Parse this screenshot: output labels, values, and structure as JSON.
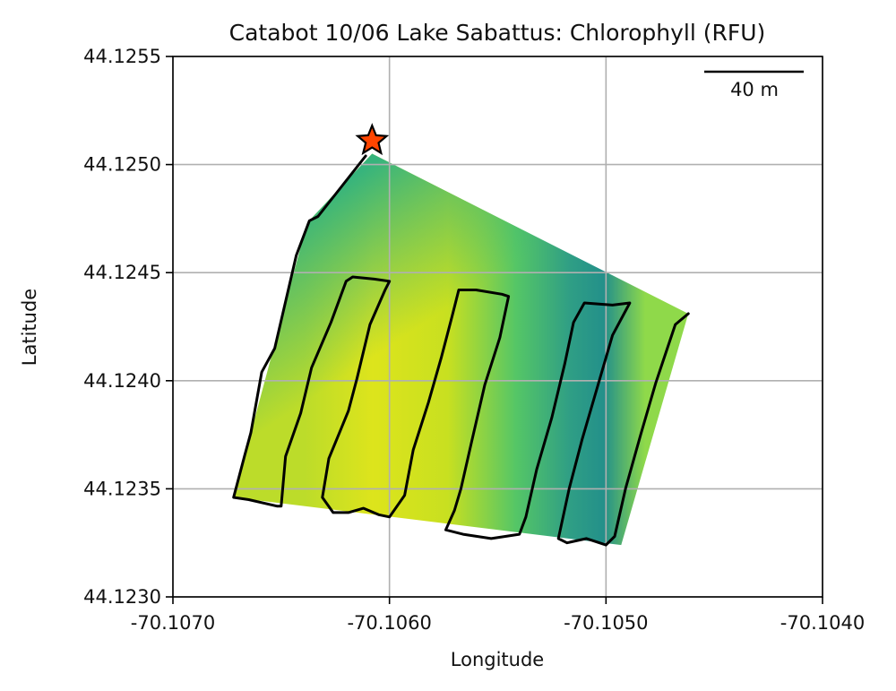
{
  "chart_data": {
    "type": "scatter",
    "title": "Catabot 10/06 Lake Sabattus: Chlorophyll (RFU)",
    "xlabel": "Longitude",
    "ylabel": "Latitude",
    "xlim": [
      -70.107,
      -70.104
    ],
    "ylim": [
      44.123,
      44.1255
    ],
    "x_ticks": [
      "-70.1070",
      "-70.1060",
      "-70.1050",
      "-70.1040"
    ],
    "x_tick_values": [
      -70.107,
      -70.106,
      -70.105,
      -70.104
    ],
    "y_ticks": [
      "44.1230",
      "44.1235",
      "44.1240",
      "44.1245",
      "44.1250",
      "44.1255"
    ],
    "y_tick_values": [
      44.123,
      44.1235,
      44.124,
      44.1245,
      44.125,
      44.1255
    ],
    "grid": true,
    "scale_bar_label": "40 m",
    "start_marker": {
      "lon": -70.10608,
      "lat": 44.12511
    },
    "survey_polygon": [
      [
        -70.10608,
        44.12505
      ],
      [
        -70.10462,
        44.12431
      ],
      [
        -70.10493,
        44.12324
      ],
      [
        -70.10672,
        44.12346
      ],
      [
        -70.10638,
        44.12473
      ]
    ],
    "track": [
      [
        -70.10611,
        44.12504
      ],
      [
        -70.10633,
        44.12476
      ],
      [
        -70.10637,
        44.12474
      ],
      [
        -70.10643,
        44.12458
      ],
      [
        -70.10653,
        44.12415
      ],
      [
        -70.10659,
        44.12404
      ],
      [
        -70.10664,
        44.12376
      ],
      [
        -70.10667,
        44.12365
      ],
      [
        -70.10672,
        44.12346
      ],
      [
        -70.10665,
        44.12345
      ],
      [
        -70.10652,
        44.12342
      ],
      [
        -70.1065,
        44.12342
      ],
      [
        -70.10648,
        44.12365
      ],
      [
        -70.10641,
        44.12385
      ],
      [
        -70.10636,
        44.12406
      ],
      [
        -70.10627,
        44.12427
      ],
      [
        -70.1062,
        44.12446
      ],
      [
        -70.10617,
        44.12448
      ],
      [
        -70.10607,
        44.12447
      ],
      [
        -70.106,
        44.12446
      ],
      [
        -70.10602,
        44.12442
      ],
      [
        -70.10609,
        44.12426
      ],
      [
        -70.10615,
        44.12401
      ],
      [
        -70.10619,
        44.12386
      ],
      [
        -70.10628,
        44.12364
      ],
      [
        -70.10631,
        44.12346
      ],
      [
        -70.10626,
        44.12339
      ],
      [
        -70.10619,
        44.12339
      ],
      [
        -70.10612,
        44.12341
      ],
      [
        -70.10605,
        44.12338
      ],
      [
        -70.106,
        44.12337
      ],
      [
        -70.10593,
        44.12347
      ],
      [
        -70.10589,
        44.12368
      ],
      [
        -70.10582,
        44.1239
      ],
      [
        -70.10576,
        44.12411
      ],
      [
        -70.10571,
        44.1243
      ],
      [
        -70.10568,
        44.12442
      ],
      [
        -70.1056,
        44.12442
      ],
      [
        -70.10548,
        44.1244
      ],
      [
        -70.10545,
        44.12439
      ],
      [
        -70.10549,
        44.1242
      ],
      [
        -70.10556,
        44.12398
      ],
      [
        -70.10562,
        44.12372
      ],
      [
        -70.10567,
        44.1235
      ],
      [
        -70.1057,
        44.1234
      ],
      [
        -70.10574,
        44.12331
      ],
      [
        -70.10566,
        44.12329
      ],
      [
        -70.10553,
        44.12327
      ],
      [
        -70.1054,
        44.12329
      ],
      [
        -70.10537,
        44.12337
      ],
      [
        -70.10532,
        44.12359
      ],
      [
        -70.10525,
        44.12383
      ],
      [
        -70.10519,
        44.12408
      ],
      [
        -70.10515,
        44.12427
      ],
      [
        -70.1051,
        44.12436
      ],
      [
        -70.10497,
        44.12435
      ],
      [
        -70.10489,
        44.12436
      ],
      [
        -70.10497,
        44.12421
      ],
      [
        -70.10504,
        44.12397
      ],
      [
        -70.10511,
        44.12373
      ],
      [
        -70.10517,
        44.1235
      ],
      [
        -70.10522,
        44.12327
      ],
      [
        -70.10518,
        44.12325
      ],
      [
        -70.10509,
        44.12327
      ],
      [
        -70.105,
        44.12324
      ],
      [
        -70.10496,
        44.12328
      ],
      [
        -70.10491,
        44.1235
      ],
      [
        -70.10484,
        44.12375
      ],
      [
        -70.10477,
        44.12399
      ],
      [
        -70.10472,
        44.12414
      ],
      [
        -70.10468,
        44.12426
      ],
      [
        -70.10462,
        44.12431
      ]
    ]
  }
}
